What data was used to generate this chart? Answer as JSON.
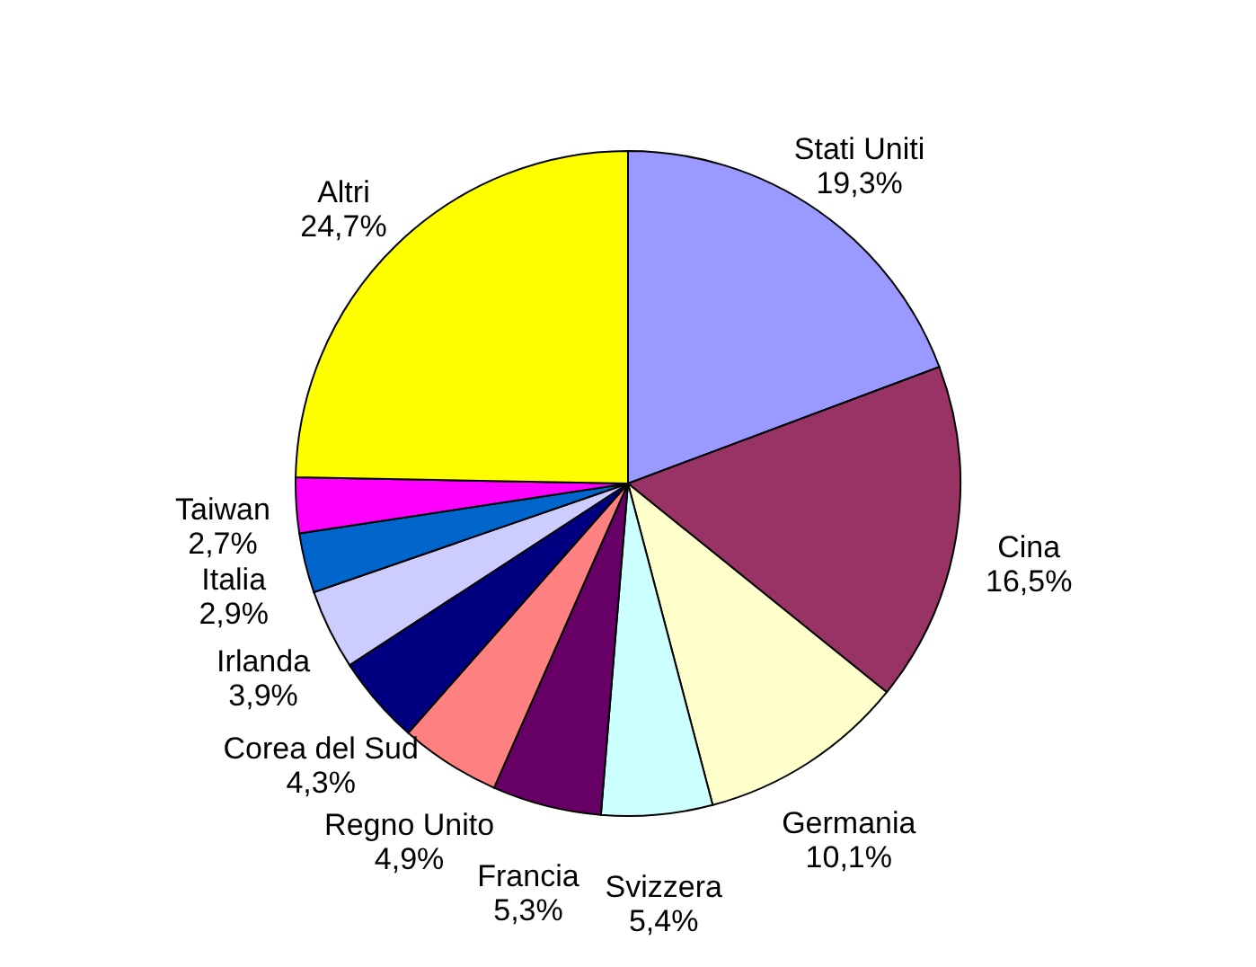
{
  "chart_data": {
    "type": "pie",
    "categories": [
      "Stati Uniti",
      "Cina",
      "Germania",
      "Svizzera",
      "Francia",
      "Regno Unito",
      "Corea del Sud",
      "Irlanda",
      "Italia",
      "Taiwan",
      "Altri"
    ],
    "values": [
      19.3,
      16.5,
      10.1,
      5.4,
      5.3,
      4.9,
      4.3,
      3.9,
      2.9,
      2.7,
      24.7
    ],
    "value_labels": [
      "19,3%",
      "16,5%",
      "10,1%",
      "5,4%",
      "5,3%",
      "4,9%",
      "4,3%",
      "3,9%",
      "2,9%",
      "2,7%",
      "24,7%"
    ],
    "colors": [
      "#9999ff",
      "#993366",
      "#ffffcc",
      "#ccffff",
      "#660066",
      "#ff8080",
      "#000080",
      "#ccccff",
      "#0066cc",
      "#ff00ff",
      "#ffff00"
    ]
  }
}
